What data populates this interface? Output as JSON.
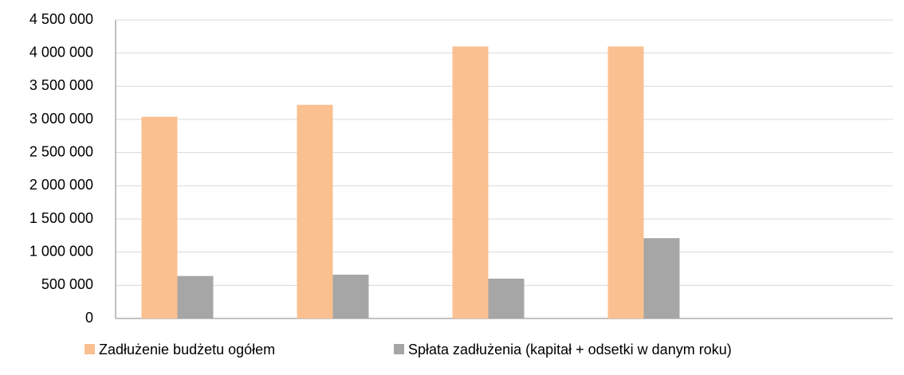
{
  "chart_data": {
    "type": "bar",
    "categories": [
      null,
      null,
      null,
      null,
      null
    ],
    "series": [
      {
        "name": "Zadłużenie budżetu ogółem",
        "color": "#fac090",
        "values": [
          3040000,
          3220000,
          4100000,
          4100000,
          null
        ]
      },
      {
        "name": "Spłata zadłużenia (kapitał + odsetki w danym roku)",
        "color": "#a6a6a6",
        "values": [
          640000,
          660000,
          600000,
          1210000,
          null
        ]
      }
    ],
    "ylim": [
      0,
      4500000
    ],
    "yticks": [
      0,
      {
        "value": 500000,
        "label": "500 000"
      },
      {
        "value": 1000000,
        "label": "1 000 000"
      },
      {
        "value": 1500000,
        "label": "1 500 000"
      },
      {
        "value": 2000000,
        "label": "2 000 000"
      },
      {
        "value": 2500000,
        "label": "2 500 000"
      },
      {
        "value": 3000000,
        "label": "3 000 000"
      },
      {
        "value": 3500000,
        "label": "3 500 000"
      },
      {
        "value": 4000000,
        "label": "4 000 000"
      },
      {
        "value": 4500000,
        "label": "4 500 000"
      }
    ],
    "grid": true,
    "legend": "bottom"
  }
}
